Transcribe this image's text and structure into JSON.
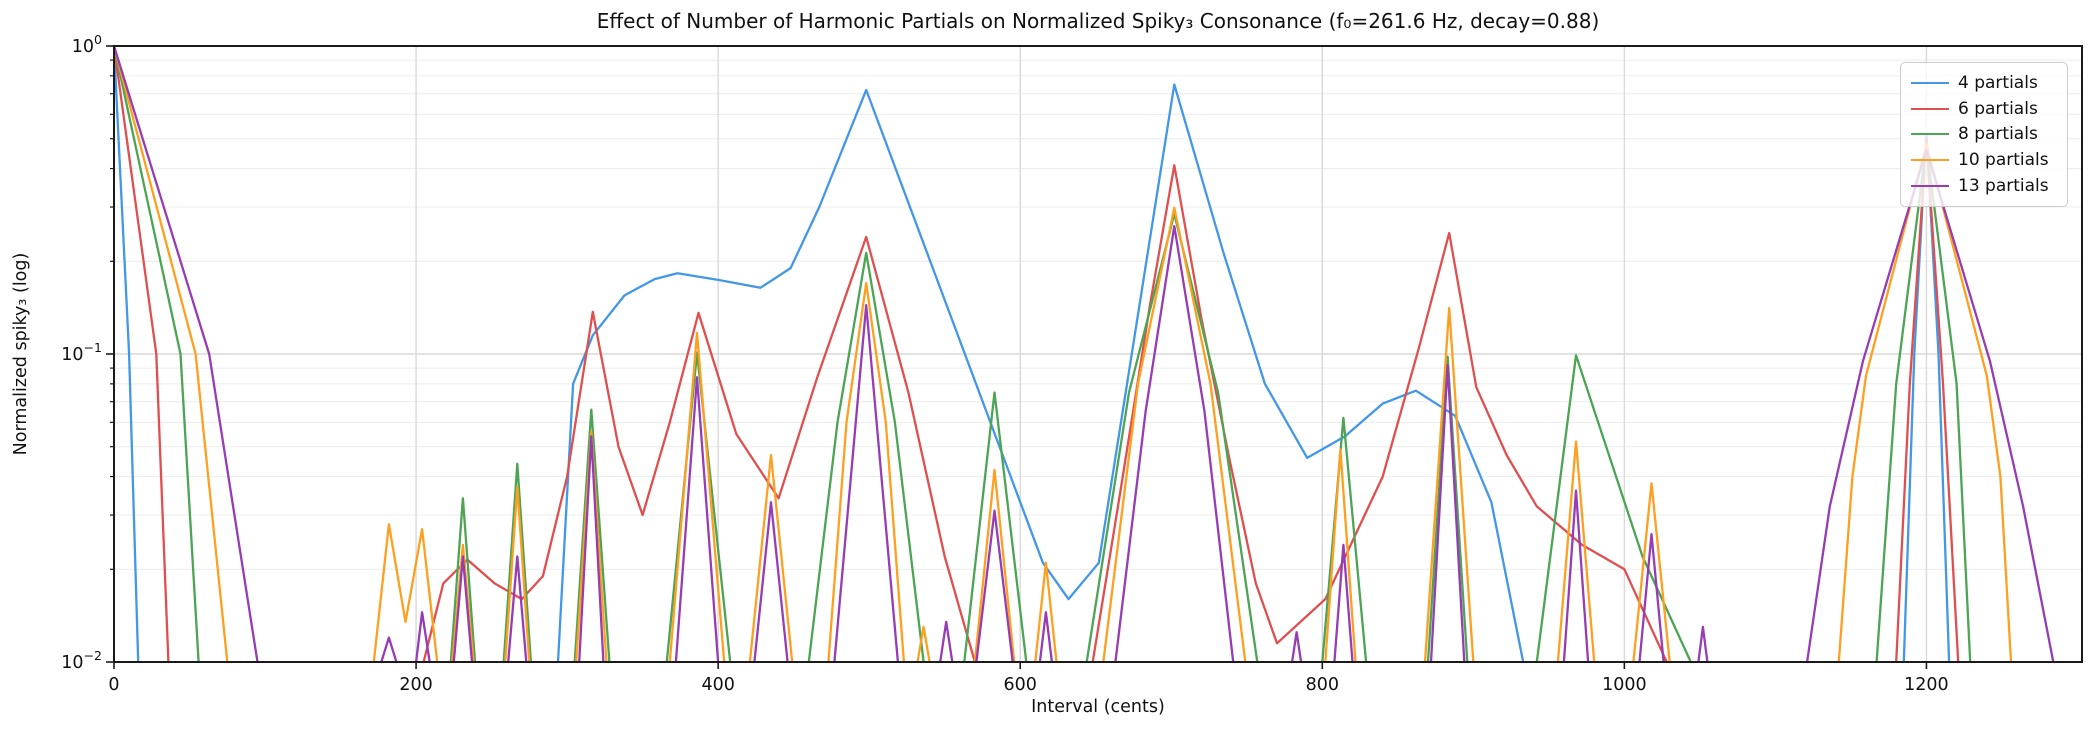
{
  "chart_data": {
    "type": "line",
    "title": "Effect of Number of Harmonic Partials on Normalized Spiky₃ Consonance (f₀=261.6 Hz, decay=0.88)",
    "xlabel": "Interval (cents)",
    "ylabel": "Normalized spiky₃ (log)",
    "yscale": "log",
    "xlim": [
      0,
      1303
    ],
    "ylim": [
      0.01,
      1.0
    ],
    "xticks": [
      0,
      200,
      400,
      600,
      800,
      1000,
      1200
    ],
    "yticks": [
      {
        "value": 1.0,
        "base": "10",
        "exp": "0"
      },
      {
        "value": 0.1,
        "base": "10",
        "exp": "−1"
      },
      {
        "value": 0.01,
        "base": "10",
        "exp": "−2"
      }
    ],
    "grid": "both",
    "legend_position": "upper right",
    "colors": {
      "grid_major": "#d9d9d9",
      "grid_minor": "#ececec",
      "spine": "#1a1a1a"
    },
    "series": [
      {
        "name": "4 partials",
        "color": "#4297e6",
        "points": [
          [
            0,
            1.0
          ],
          [
            10,
            0.1
          ],
          [
            16,
            0.01
          ],
          [
            294,
            0.01
          ],
          [
            304,
            0.08
          ],
          [
            317,
            0.115
          ],
          [
            338,
            0.155
          ],
          [
            358,
            0.175
          ],
          [
            373,
            0.183
          ],
          [
            400,
            0.174
          ],
          [
            428,
            0.164
          ],
          [
            448,
            0.19
          ],
          [
            467,
            0.3
          ],
          [
            498,
            0.72
          ],
          [
            615,
            0.021
          ],
          [
            632,
            0.016
          ],
          [
            652,
            0.021
          ],
          [
            702,
            0.75
          ],
          [
            735,
            0.21
          ],
          [
            762,
            0.08
          ],
          [
            790,
            0.046
          ],
          [
            815,
            0.054
          ],
          [
            840,
            0.069
          ],
          [
            862,
            0.076
          ],
          [
            888,
            0.063
          ],
          [
            912,
            0.033
          ],
          [
            933,
            0.01
          ],
          [
            1185,
            0.01
          ],
          [
            1192,
            0.1
          ],
          [
            1200,
            0.52
          ],
          [
            1208,
            0.1
          ],
          [
            1215,
            0.01
          ]
        ]
      },
      {
        "name": "6 partials",
        "color": "#e04f4f",
        "points": [
          [
            0,
            1.0
          ],
          [
            28,
            0.1
          ],
          [
            36,
            0.01
          ],
          [
            205,
            0.01
          ],
          [
            218,
            0.018
          ],
          [
            234,
            0.0215
          ],
          [
            252,
            0.018
          ],
          [
            270,
            0.016
          ],
          [
            284,
            0.019
          ],
          [
            300,
            0.04
          ],
          [
            317,
            0.137
          ],
          [
            334,
            0.05
          ],
          [
            350,
            0.03
          ],
          [
            368,
            0.06
          ],
          [
            387,
            0.136
          ],
          [
            412,
            0.055
          ],
          [
            440,
            0.034
          ],
          [
            466,
            0.085
          ],
          [
            498,
            0.24
          ],
          [
            526,
            0.075
          ],
          [
            550,
            0.022
          ],
          [
            570,
            0.01
          ],
          [
            648,
            0.01
          ],
          [
            666,
            0.035
          ],
          [
            686,
            0.145
          ],
          [
            702,
            0.41
          ],
          [
            720,
            0.13
          ],
          [
            738,
            0.047
          ],
          [
            756,
            0.018
          ],
          [
            770,
            0.0115
          ],
          [
            802,
            0.016
          ],
          [
            840,
            0.04
          ],
          [
            864,
            0.105
          ],
          [
            884,
            0.247
          ],
          [
            902,
            0.078
          ],
          [
            922,
            0.047
          ],
          [
            942,
            0.032
          ],
          [
            972,
            0.024
          ],
          [
            1000,
            0.02
          ],
          [
            1028,
            0.01
          ],
          [
            1180,
            0.01
          ],
          [
            1189,
            0.08
          ],
          [
            1200,
            0.5
          ],
          [
            1211,
            0.08
          ],
          [
            1221,
            0.01
          ]
        ]
      },
      {
        "name": "8 partials",
        "color": "#4ca454",
        "points": [
          [
            0,
            1.0
          ],
          [
            44,
            0.1
          ],
          [
            56,
            0.01
          ],
          [
            223,
            0.01
          ],
          [
            231,
            0.034
          ],
          [
            239,
            0.01
          ],
          [
            258,
            0.01
          ],
          [
            267,
            0.044
          ],
          [
            276,
            0.01
          ],
          [
            305,
            0.01
          ],
          [
            316,
            0.066
          ],
          [
            328,
            0.01
          ],
          [
            366,
            0.01
          ],
          [
            386,
            0.101
          ],
          [
            408,
            0.01
          ],
          [
            460,
            0.01
          ],
          [
            479,
            0.06
          ],
          [
            498,
            0.213
          ],
          [
            517,
            0.06
          ],
          [
            536,
            0.01
          ],
          [
            563,
            0.01
          ],
          [
            583,
            0.075
          ],
          [
            604,
            0.01
          ],
          [
            644,
            0.01
          ],
          [
            672,
            0.075
          ],
          [
            702,
            0.285
          ],
          [
            731,
            0.075
          ],
          [
            757,
            0.01
          ],
          [
            800,
            0.01
          ],
          [
            814,
            0.062
          ],
          [
            829,
            0.01
          ],
          [
            870,
            0.01
          ],
          [
            883,
            0.098
          ],
          [
            896,
            0.01
          ],
          [
            942,
            0.01
          ],
          [
            968,
            0.099
          ],
          [
            1012,
            0.022
          ],
          [
            1044,
            0.01
          ],
          [
            1167,
            0.01
          ],
          [
            1180,
            0.08
          ],
          [
            1200,
            0.48
          ],
          [
            1220,
            0.08
          ],
          [
            1229,
            0.01
          ]
        ]
      },
      {
        "name": "10 partials",
        "color": "#ff9f1f",
        "points": [
          [
            0,
            1.0
          ],
          [
            54,
            0.1
          ],
          [
            75,
            0.01
          ],
          [
            172,
            0.01
          ],
          [
            182,
            0.028
          ],
          [
            193,
            0.0135
          ],
          [
            204,
            0.027
          ],
          [
            214,
            0.01
          ],
          [
            224,
            0.01
          ],
          [
            231,
            0.024
          ],
          [
            238,
            0.01
          ],
          [
            259,
            0.01
          ],
          [
            267,
            0.037
          ],
          [
            275,
            0.01
          ],
          [
            306,
            0.01
          ],
          [
            316,
            0.056
          ],
          [
            326,
            0.01
          ],
          [
            368,
            0.01
          ],
          [
            386,
            0.117
          ],
          [
            404,
            0.01
          ],
          [
            421,
            0.01
          ],
          [
            435,
            0.047
          ],
          [
            449,
            0.01
          ],
          [
            473,
            0.01
          ],
          [
            485,
            0.06
          ],
          [
            498,
            0.17
          ],
          [
            511,
            0.06
          ],
          [
            523,
            0.01
          ],
          [
            532,
            0.01
          ],
          [
            536,
            0.013
          ],
          [
            540,
            0.01
          ],
          [
            570,
            0.01
          ],
          [
            583,
            0.042
          ],
          [
            596,
            0.01
          ],
          [
            610,
            0.01
          ],
          [
            617,
            0.021
          ],
          [
            624,
            0.01
          ],
          [
            655,
            0.01
          ],
          [
            678,
            0.08
          ],
          [
            702,
            0.298
          ],
          [
            726,
            0.08
          ],
          [
            749,
            0.01
          ],
          [
            802,
            0.01
          ],
          [
            812,
            0.049
          ],
          [
            822,
            0.01
          ],
          [
            868,
            0.01
          ],
          [
            884,
            0.141
          ],
          [
            900,
            0.01
          ],
          [
            956,
            0.01
          ],
          [
            968,
            0.052
          ],
          [
            980,
            0.01
          ],
          [
            1006,
            0.01
          ],
          [
            1018,
            0.038
          ],
          [
            1030,
            0.01
          ],
          [
            1142,
            0.01
          ],
          [
            1151,
            0.04
          ],
          [
            1160,
            0.085
          ],
          [
            1200,
            0.48
          ],
          [
            1240,
            0.085
          ],
          [
            1249,
            0.04
          ],
          [
            1256,
            0.01
          ]
        ]
      },
      {
        "name": "13 partials",
        "color": "#963cb4",
        "points": [
          [
            0,
            1.0
          ],
          [
            63,
            0.1
          ],
          [
            95,
            0.01
          ],
          [
            177,
            0.01
          ],
          [
            182,
            0.012
          ],
          [
            187,
            0.01
          ],
          [
            200,
            0.01
          ],
          [
            204,
            0.0145
          ],
          [
            209,
            0.01
          ],
          [
            225,
            0.01
          ],
          [
            231,
            0.022
          ],
          [
            237,
            0.01
          ],
          [
            261,
            0.01
          ],
          [
            267,
            0.022
          ],
          [
            273,
            0.01
          ],
          [
            308,
            0.01
          ],
          [
            316,
            0.054
          ],
          [
            324,
            0.01
          ],
          [
            372,
            0.01
          ],
          [
            386,
            0.084
          ],
          [
            400,
            0.01
          ],
          [
            424,
            0.01
          ],
          [
            435,
            0.033
          ],
          [
            446,
            0.01
          ],
          [
            477,
            0.01
          ],
          [
            498,
            0.144
          ],
          [
            519,
            0.01
          ],
          [
            547,
            0.01
          ],
          [
            551,
            0.0135
          ],
          [
            555,
            0.01
          ],
          [
            571,
            0.01
          ],
          [
            583,
            0.031
          ],
          [
            595,
            0.01
          ],
          [
            613,
            0.01
          ],
          [
            617,
            0.0145
          ],
          [
            621,
            0.01
          ],
          [
            663,
            0.01
          ],
          [
            683,
            0.065
          ],
          [
            702,
            0.26
          ],
          [
            722,
            0.065
          ],
          [
            741,
            0.01
          ],
          [
            780,
            0.01
          ],
          [
            783,
            0.0125
          ],
          [
            786,
            0.01
          ],
          [
            808,
            0.01
          ],
          [
            814,
            0.024
          ],
          [
            820,
            0.01
          ],
          [
            872,
            0.01
          ],
          [
            883,
            0.092
          ],
          [
            894,
            0.01
          ],
          [
            960,
            0.01
          ],
          [
            968,
            0.036
          ],
          [
            976,
            0.01
          ],
          [
            1010,
            0.01
          ],
          [
            1018,
            0.026
          ],
          [
            1026,
            0.01
          ],
          [
            1049,
            0.01
          ],
          [
            1052,
            0.013
          ],
          [
            1055,
            0.01
          ],
          [
            1121,
            0.01
          ],
          [
            1136,
            0.032
          ],
          [
            1158,
            0.095
          ],
          [
            1200,
            0.46
          ],
          [
            1242,
            0.095
          ],
          [
            1264,
            0.032
          ],
          [
            1284,
            0.01
          ]
        ]
      }
    ]
  }
}
